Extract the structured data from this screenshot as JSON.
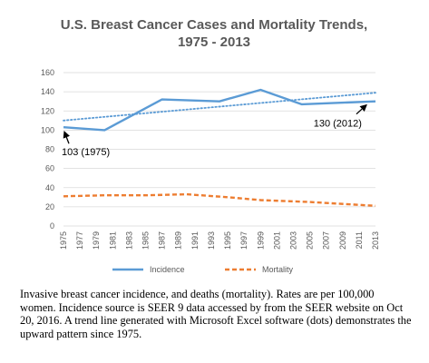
{
  "chart_data": {
    "type": "line",
    "title": "U.S. Breast Cancer Cases and Mortality Trends,",
    "subtitle": "1975 - 2013",
    "ylim": [
      0,
      160
    ],
    "yticks": [
      0,
      20,
      40,
      60,
      80,
      100,
      120,
      140,
      160
    ],
    "categories": [
      "1975",
      "1977",
      "1979",
      "1981",
      "1983",
      "1985",
      "1987",
      "1989",
      "1991",
      "1993",
      "1995",
      "1997",
      "1999",
      "2001",
      "2003",
      "2005",
      "2007",
      "2009",
      "2011",
      "2013"
    ],
    "grid": true,
    "legend_position": "bottom",
    "series": [
      {
        "name": "Incidence",
        "color": "#5b9bd5",
        "style": "solid",
        "points": [
          [
            1975,
            103
          ],
          [
            1980,
            100
          ],
          [
            1987,
            132
          ],
          [
            1994,
            130
          ],
          [
            1999,
            142
          ],
          [
            2004,
            127
          ],
          [
            2013,
            130
          ]
        ]
      },
      {
        "name": "Mortality",
        "color": "#ed7d31",
        "style": "dashed",
        "points": [
          [
            1975,
            31
          ],
          [
            1980,
            32
          ],
          [
            1985,
            32
          ],
          [
            1990,
            33
          ],
          [
            1995,
            30
          ],
          [
            1999,
            27
          ],
          [
            2005,
            25
          ],
          [
            2013,
            21
          ]
        ]
      }
    ],
    "trendline": {
      "color": "#5b9bd5",
      "style": "dotted",
      "points": [
        [
          1975,
          110
        ],
        [
          2013,
          139
        ]
      ]
    },
    "annotations": [
      {
        "text": "103 (1975)",
        "x": 1975,
        "y": 103
      },
      {
        "text": "130 (2012)",
        "x": 2012,
        "y": 130
      }
    ]
  },
  "caption": "Invasive breast cancer incidence, and deaths (mortality). Rates are per 100,000 women. Incidence source is SEER 9 data accessed by from the SEER website on Oct 20, 2016. A trend line generated with Microsoft Excel software (dots) demonstrates the upward pattern since 1975."
}
